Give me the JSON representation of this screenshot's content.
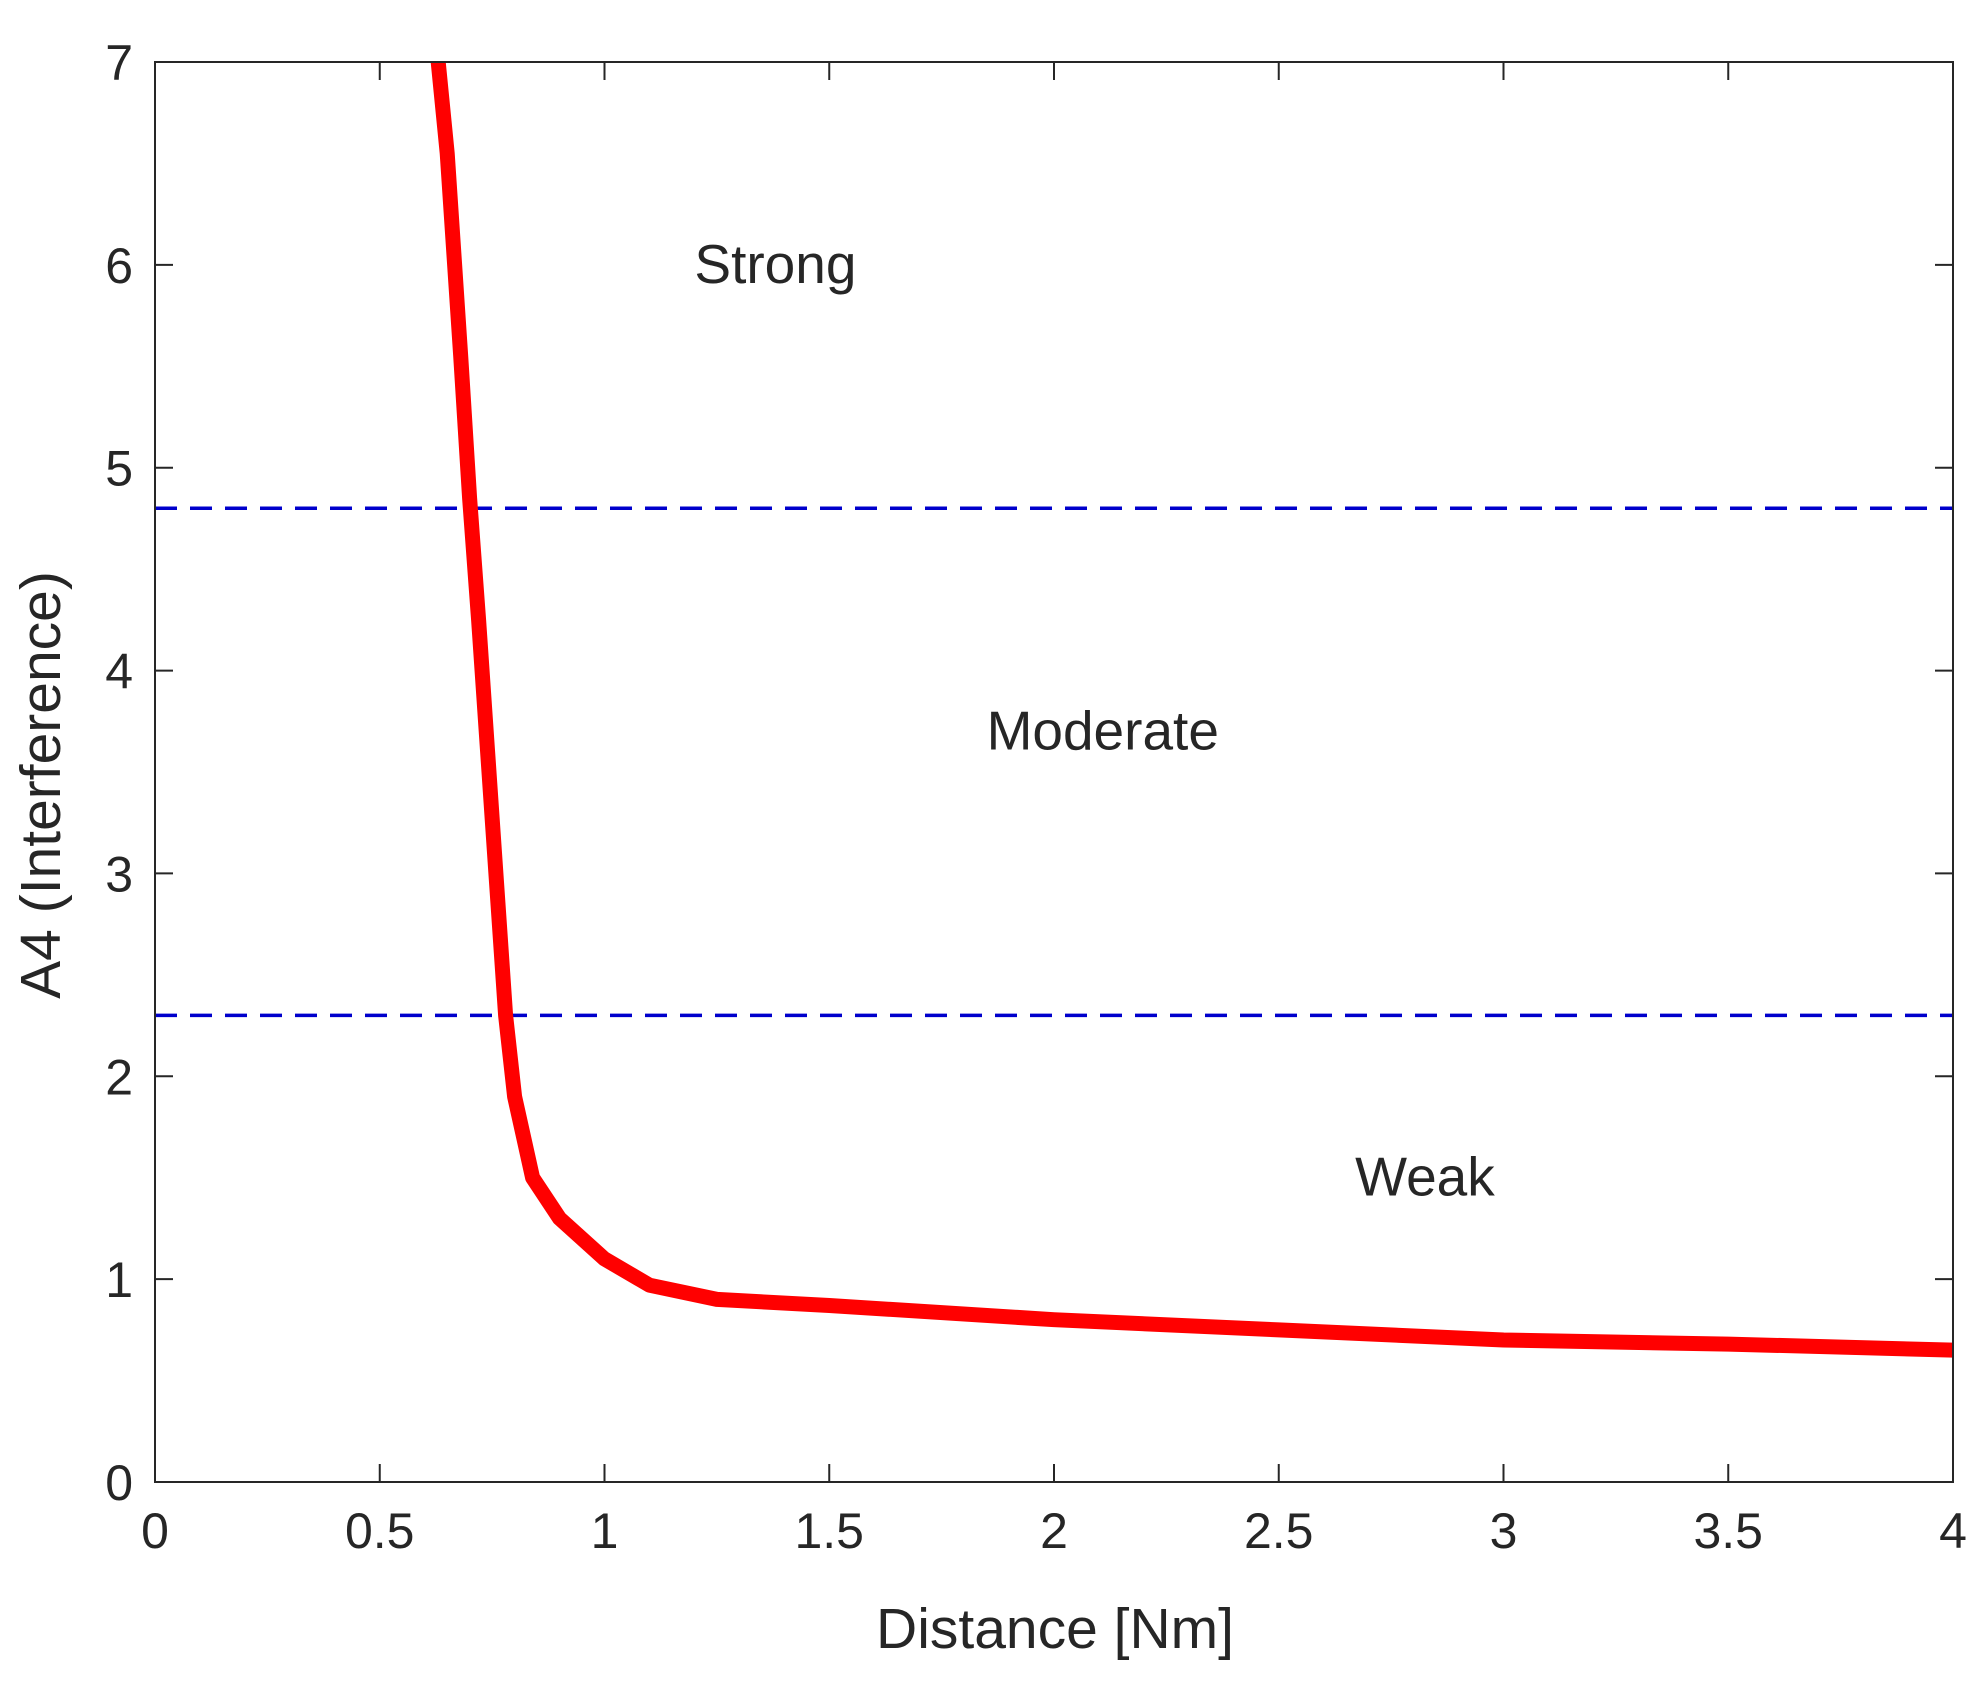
{
  "chart_data": {
    "type": "line",
    "title": "",
    "xlabel": "Distance [Nm]",
    "ylabel": "A4 (Interference)",
    "xlim": [
      0,
      4
    ],
    "ylim": [
      0,
      7
    ],
    "xticks": [
      0,
      0.5,
      1,
      1.5,
      2,
      2.5,
      3,
      3.5,
      4
    ],
    "xtick_labels": [
      "0",
      "0.5",
      "1",
      "1.5",
      "2",
      "2.5",
      "3",
      "3.5",
      "4"
    ],
    "yticks": [
      0,
      1,
      2,
      3,
      4,
      5,
      6,
      7
    ],
    "ytick_labels": [
      "0",
      "1",
      "2",
      "3",
      "4",
      "5",
      "6",
      "7"
    ],
    "grid": false,
    "series": [
      {
        "name": "A4 curve",
        "color": "#ff0000",
        "x": [
          0.63,
          0.65,
          0.68,
          0.7,
          0.72,
          0.74,
          0.76,
          0.78,
          0.8,
          0.84,
          0.9,
          1.0,
          1.1,
          1.25,
          1.5,
          2.0,
          2.5,
          3.0,
          3.5,
          4.0
        ],
        "y": [
          7.0,
          6.55,
          5.55,
          4.85,
          4.25,
          3.6,
          2.95,
          2.3,
          1.9,
          1.5,
          1.3,
          1.1,
          0.97,
          0.9,
          0.87,
          0.8,
          0.75,
          0.7,
          0.68,
          0.65
        ]
      }
    ],
    "reference_lines": [
      {
        "name": "strong-threshold",
        "y": 4.8,
        "color": "#0000cc",
        "style": "dashed"
      },
      {
        "name": "weak-threshold",
        "y": 2.3,
        "color": "#0000cc",
        "style": "dashed"
      }
    ],
    "annotations": [
      {
        "text": "Strong",
        "x": 1.2,
        "y": 6.0
      },
      {
        "text": "Moderate",
        "x": 1.85,
        "y": 3.7
      },
      {
        "text": "Weak",
        "x": 2.67,
        "y": 1.5
      }
    ]
  }
}
